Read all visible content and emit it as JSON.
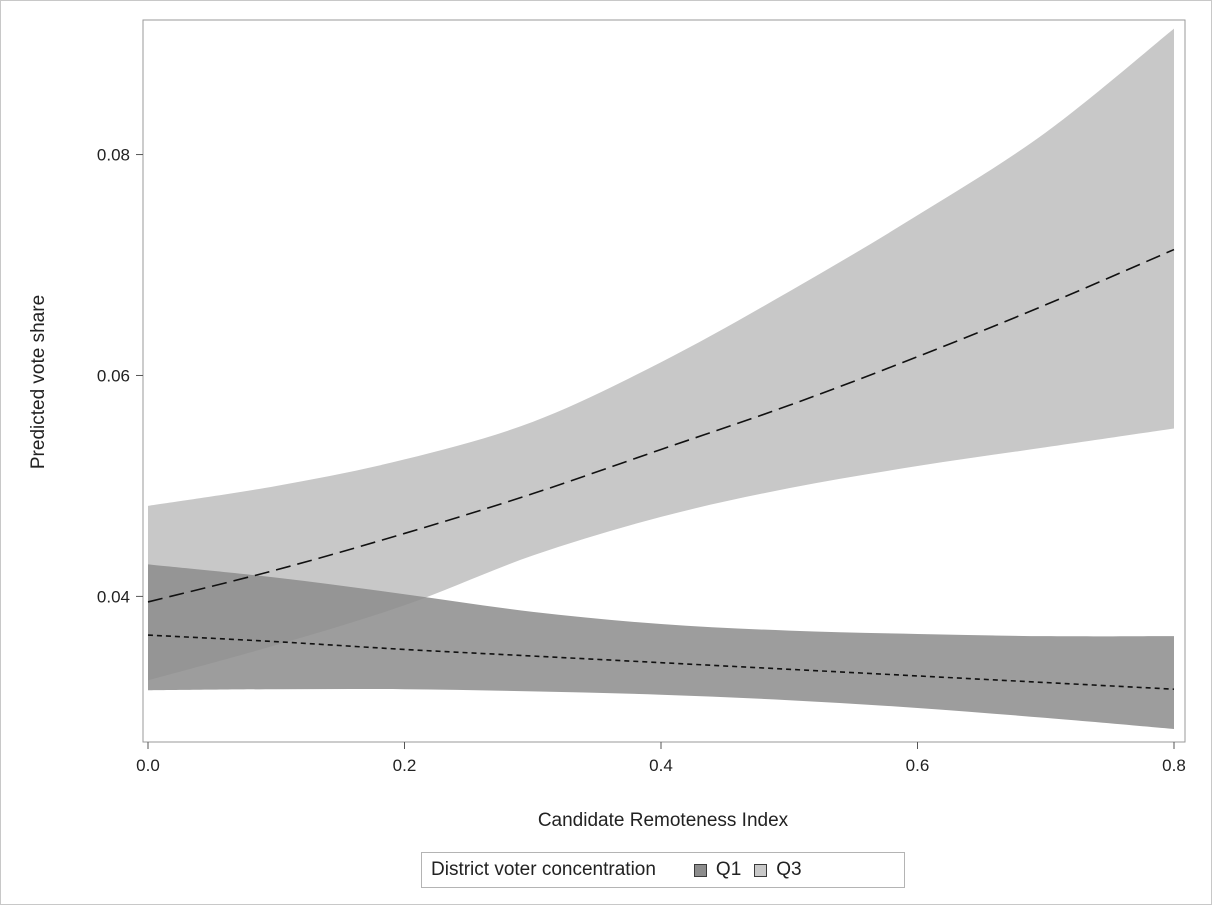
{
  "chart_data": {
    "type": "line",
    "title": "",
    "xlabel": "Candidate Remoteness Index",
    "ylabel": "Predicted vote share",
    "xlim": [
      0,
      0.8
    ],
    "ylim": [
      0.027,
      0.092
    ],
    "xticks": [
      0.0,
      0.2,
      0.4,
      0.6,
      0.8
    ],
    "xtick_labels": [
      "0.0",
      "0.2",
      "0.4",
      "0.6",
      "0.8"
    ],
    "yticks": [
      0.04,
      0.06,
      0.08
    ],
    "ytick_labels": [
      "0.04",
      "0.06",
      "0.08"
    ],
    "grid": false,
    "legend": {
      "title": "District voter concentration",
      "placement": "bottom",
      "entries": [
        "Q1",
        "Q3"
      ]
    },
    "series": [
      {
        "name": "Q1",
        "line_style": "short-dash",
        "band_color": "#8c8c8c",
        "x": [
          0.0,
          0.1,
          0.2,
          0.3,
          0.4,
          0.5,
          0.6,
          0.7,
          0.8
        ],
        "y": [
          0.0365,
          0.0359,
          0.0352,
          0.0346,
          0.034,
          0.0334,
          0.0328,
          0.0322,
          0.0316
        ],
        "lower": [
          0.0315,
          0.0316,
          0.0316,
          0.0314,
          0.0311,
          0.0306,
          0.0299,
          0.029,
          0.028
        ],
        "upper": [
          0.0429,
          0.0417,
          0.0402,
          0.0386,
          0.0375,
          0.0369,
          0.0366,
          0.0364,
          0.0364
        ]
      },
      {
        "name": "Q3",
        "line_style": "long-dash",
        "band_color": "#c8c8c8",
        "x": [
          0.0,
          0.1,
          0.2,
          0.3,
          0.4,
          0.5,
          0.6,
          0.7,
          0.8
        ],
        "y": [
          0.0395,
          0.0424,
          0.0457,
          0.0493,
          0.0533,
          0.0573,
          0.0617,
          0.0664,
          0.0714
        ],
        "lower": [
          0.0324,
          0.0356,
          0.0392,
          0.0437,
          0.0472,
          0.0498,
          0.0518,
          0.0535,
          0.0552
        ],
        "upper": [
          0.0482,
          0.05,
          0.0524,
          0.0558,
          0.0612,
          0.0676,
          0.0745,
          0.082,
          0.0914
        ]
      }
    ]
  }
}
